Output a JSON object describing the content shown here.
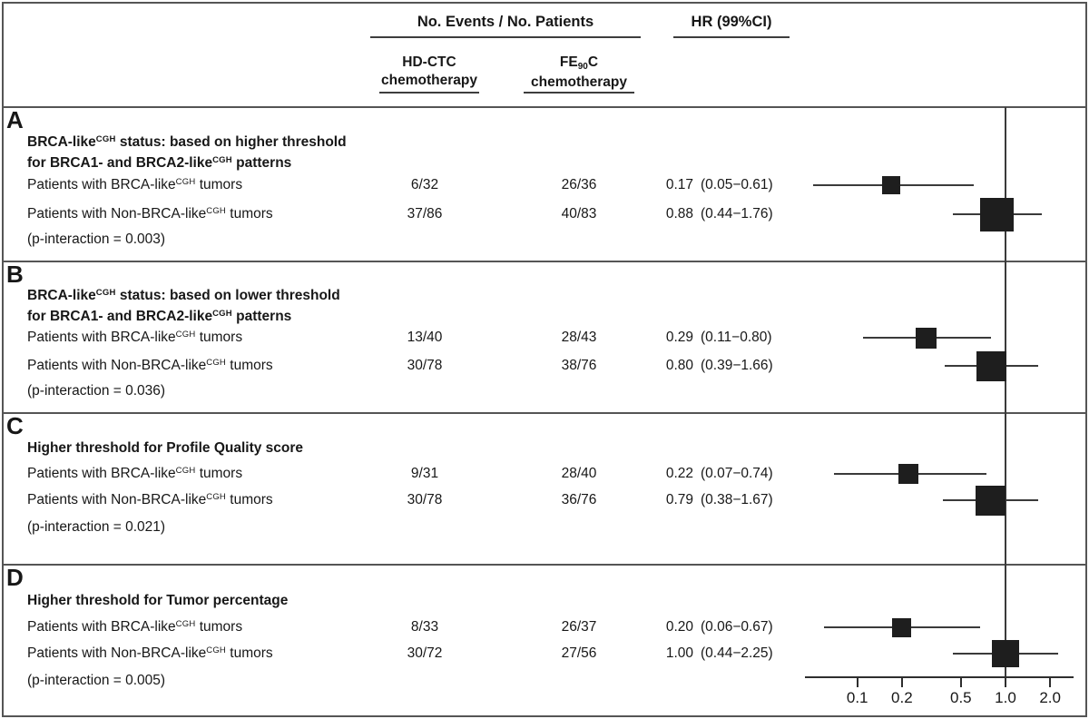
{
  "figure": {
    "header": {
      "events_group_label": "No. Events / No. Patients",
      "hr_label": "HR (99%CI)",
      "arm1": {
        "line1": "HD-CTC",
        "line2": "chemotherapy"
      },
      "arm2": {
        "line1_pre": "FE",
        "line1_sub": "90",
        "line1_post": "C",
        "line2": "chemotherapy"
      }
    },
    "panels": [
      {
        "letter": "A",
        "title": [
          {
            "t": "BRCA-like"
          },
          {
            "t": "CGH",
            "sup": true
          },
          {
            "t": " status: based on higher threshold"
          },
          {
            "br": true
          },
          {
            "t": "for BRCA1- and BRCA2-like"
          },
          {
            "t": "CGH",
            "sup": true
          },
          {
            "t": " patterns"
          }
        ],
        "rows": [
          {
            "label": [
              {
                "t": "Patients with BRCA-like"
              },
              {
                "t": "CGH",
                "sup": true
              },
              {
                "t": " tumors"
              }
            ],
            "events_hd": "6/32",
            "events_fe": "26/36",
            "hr": "0.17",
            "ci": "(0.05−0.61)"
          },
          {
            "label": [
              {
                "t": "Patients with Non-BRCA-like"
              },
              {
                "t": "CGH",
                "sup": true
              },
              {
                "t": " tumors"
              }
            ],
            "events_hd": "37/86",
            "events_fe": "40/83",
            "hr": "0.88",
            "ci": "(0.44−1.76)"
          }
        ],
        "p_interaction": "(p-interaction = 0.003)"
      },
      {
        "letter": "B",
        "title": [
          {
            "t": "BRCA-like"
          },
          {
            "t": "CGH",
            "sup": true
          },
          {
            "t": " status: based on lower threshold"
          },
          {
            "br": true
          },
          {
            "t": "for BRCA1- and BRCA2-like"
          },
          {
            "t": "CGH",
            "sup": true
          },
          {
            "t": " patterns"
          }
        ],
        "rows": [
          {
            "label": [
              {
                "t": "Patients with BRCA-like"
              },
              {
                "t": "CGH",
                "sup": true
              },
              {
                "t": " tumors"
              }
            ],
            "events_hd": "13/40",
            "events_fe": "28/43",
            "hr": "0.29",
            "ci": "(0.11−0.80)"
          },
          {
            "label": [
              {
                "t": "Patients with Non-BRCA-like"
              },
              {
                "t": "CGH",
                "sup": true
              },
              {
                "t": " tumors"
              }
            ],
            "events_hd": "30/78",
            "events_fe": "38/76",
            "hr": "0.80",
            "ci": "(0.39−1.66)"
          }
        ],
        "p_interaction": "(p-interaction = 0.036)"
      },
      {
        "letter": "C",
        "title": [
          {
            "t": "Higher threshold for Profile Quality score"
          }
        ],
        "rows": [
          {
            "label": [
              {
                "t": "Patients with BRCA-like"
              },
              {
                "t": "CGH",
                "sup": true
              },
              {
                "t": " tumors"
              }
            ],
            "events_hd": "9/31",
            "events_fe": "28/40",
            "hr": "0.22",
            "ci": "(0.07−0.74)"
          },
          {
            "label": [
              {
                "t": "Patients with Non-BRCA-like"
              },
              {
                "t": "CGH",
                "sup": true
              },
              {
                "t": " tumors"
              }
            ],
            "events_hd": "30/78",
            "events_fe": "36/76",
            "hr": "0.79",
            "ci": "(0.38−1.67)"
          }
        ],
        "p_interaction": "(p-interaction = 0.021)"
      },
      {
        "letter": "D",
        "title": [
          {
            "t": "Higher threshold for Tumor percentage"
          }
        ],
        "rows": [
          {
            "label": [
              {
                "t": "Patients with BRCA-like"
              },
              {
                "t": "CGH",
                "sup": true
              },
              {
                "t": " tumors"
              }
            ],
            "events_hd": "8/33",
            "events_fe": "26/37",
            "hr": "0.20",
            "ci": "(0.06−0.67)"
          },
          {
            "label": [
              {
                "t": "Patients with Non-BRCA-like"
              },
              {
                "t": "CGH",
                "sup": true
              },
              {
                "t": " tumors"
              }
            ],
            "events_hd": "30/72",
            "events_fe": "27/56",
            "hr": "1.00",
            "ci": "(0.44−2.25)"
          }
        ],
        "p_interaction": "(p-interaction = 0.005)"
      }
    ]
  },
  "chart_data": {
    "type": "forest",
    "scale": "log10",
    "xlim": [
      0.04,
      3.0
    ],
    "reference_line": 1.0,
    "ticks": [
      0.1,
      0.2,
      0.5,
      1.0,
      2.0
    ],
    "tick_labels": [
      "0.1",
      "0.2",
      "0.5",
      "1.0",
      "2.0"
    ],
    "rows": [
      {
        "panel": "A",
        "group": "BRCA-like CGH tumors",
        "hr": 0.17,
        "ci_low": 0.05,
        "ci_high": 0.61,
        "marker_size": 20
      },
      {
        "panel": "A",
        "group": "Non-BRCA-like CGH tumors",
        "hr": 0.88,
        "ci_low": 0.44,
        "ci_high": 1.76,
        "marker_size": 37
      },
      {
        "panel": "B",
        "group": "BRCA-like CGH tumors",
        "hr": 0.29,
        "ci_low": 0.11,
        "ci_high": 0.8,
        "marker_size": 23
      },
      {
        "panel": "B",
        "group": "Non-BRCA-like CGH tumors",
        "hr": 0.8,
        "ci_low": 0.39,
        "ci_high": 1.66,
        "marker_size": 33
      },
      {
        "panel": "C",
        "group": "BRCA-like CGH tumors",
        "hr": 0.22,
        "ci_low": 0.07,
        "ci_high": 0.74,
        "marker_size": 22
      },
      {
        "panel": "C",
        "group": "Non-BRCA-like CGH tumors",
        "hr": 0.79,
        "ci_low": 0.38,
        "ci_high": 1.67,
        "marker_size": 33
      },
      {
        "panel": "D",
        "group": "BRCA-like CGH tumors",
        "hr": 0.2,
        "ci_low": 0.06,
        "ci_high": 0.67,
        "marker_size": 21
      },
      {
        "panel": "D",
        "group": "Non-BRCA-like CGH tumors",
        "hr": 1.0,
        "ci_low": 0.44,
        "ci_high": 2.25,
        "marker_size": 30
      }
    ]
  },
  "colors": {
    "text": "#171717",
    "marker": "#1e1e1e",
    "ci_line": "#3a3a3a",
    "axis": "#2e2e2e",
    "border": "#555555"
  }
}
